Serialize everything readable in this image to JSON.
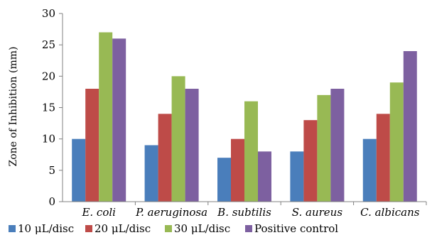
{
  "chart_data": {
    "type": "bar",
    "title": "",
    "xlabel": "",
    "ylabel": "Zone of Inhibition (mm)",
    "ylim": [
      0,
      30
    ],
    "yticks": [
      0,
      5,
      10,
      15,
      20,
      25,
      30
    ],
    "grid": false,
    "legend_position": "bottom",
    "categories": [
      "E. coli",
      "P. aeruginosa",
      "B. subtilis",
      "S. aureus",
      "C. albicans"
    ],
    "series": [
      {
        "name": "10 μL/disc",
        "color": "#4a7ebb",
        "values": [
          10,
          9,
          7,
          8,
          10
        ]
      },
      {
        "name": "20 μL/disc",
        "color": "#be4b48",
        "values": [
          18,
          14,
          10,
          13,
          14
        ]
      },
      {
        "name": "30 μL/disc",
        "color": "#98b954",
        "values": [
          27,
          20,
          16,
          17,
          19
        ]
      },
      {
        "name": "Positive control",
        "color": "#7d60a0",
        "values": [
          26,
          18,
          8,
          18,
          24
        ]
      }
    ]
  }
}
